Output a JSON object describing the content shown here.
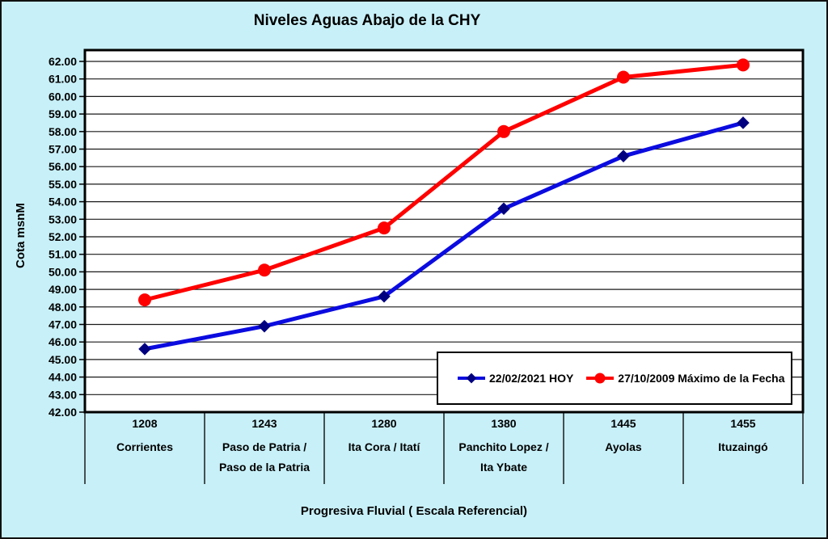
{
  "window": {
    "background_color": "#C8F0F8",
    "plot_background_color": "#FFFFFF",
    "border_color": "#111111"
  },
  "chart_data": {
    "type": "line",
    "title": "Niveles Aguas Abajo de la CHY",
    "xlabel": "Progresiva Fluvial ( Escala Referencial)",
    "ylabel": "Cota msnM",
    "ylim": [
      42.0,
      62.0
    ],
    "ytick_step": 1.0,
    "ytick_decimals": 2,
    "grid": true,
    "legend_position": "inside-bottom-right",
    "categories": [
      {
        "km": "1208",
        "name_lines": [
          "Corrientes"
        ]
      },
      {
        "km": "1243",
        "name_lines": [
          "Paso de Patria /",
          "Paso de la Patria"
        ]
      },
      {
        "km": "1280",
        "name_lines": [
          "Ita Cora / Itatí"
        ]
      },
      {
        "km": "1380",
        "name_lines": [
          "Panchito Lopez /",
          "Ita Ybate"
        ]
      },
      {
        "km": "1445",
        "name_lines": [
          "Ayolas"
        ]
      },
      {
        "km": "1455",
        "name_lines": [
          "Ituzaingó"
        ]
      }
    ],
    "series": [
      {
        "name": "22/02/2021 HOY",
        "color": "#0B0BE0",
        "marker": "diamond",
        "marker_color": "#000080",
        "values": [
          45.6,
          46.9,
          48.6,
          53.6,
          56.6,
          58.5
        ]
      },
      {
        "name": "27/10/2009 Máximo de la Fecha",
        "color": "#FF0000",
        "marker": "circle",
        "marker_color": "#FF0000",
        "values": [
          48.4,
          50.1,
          52.5,
          58.0,
          61.1,
          61.8
        ]
      }
    ]
  }
}
